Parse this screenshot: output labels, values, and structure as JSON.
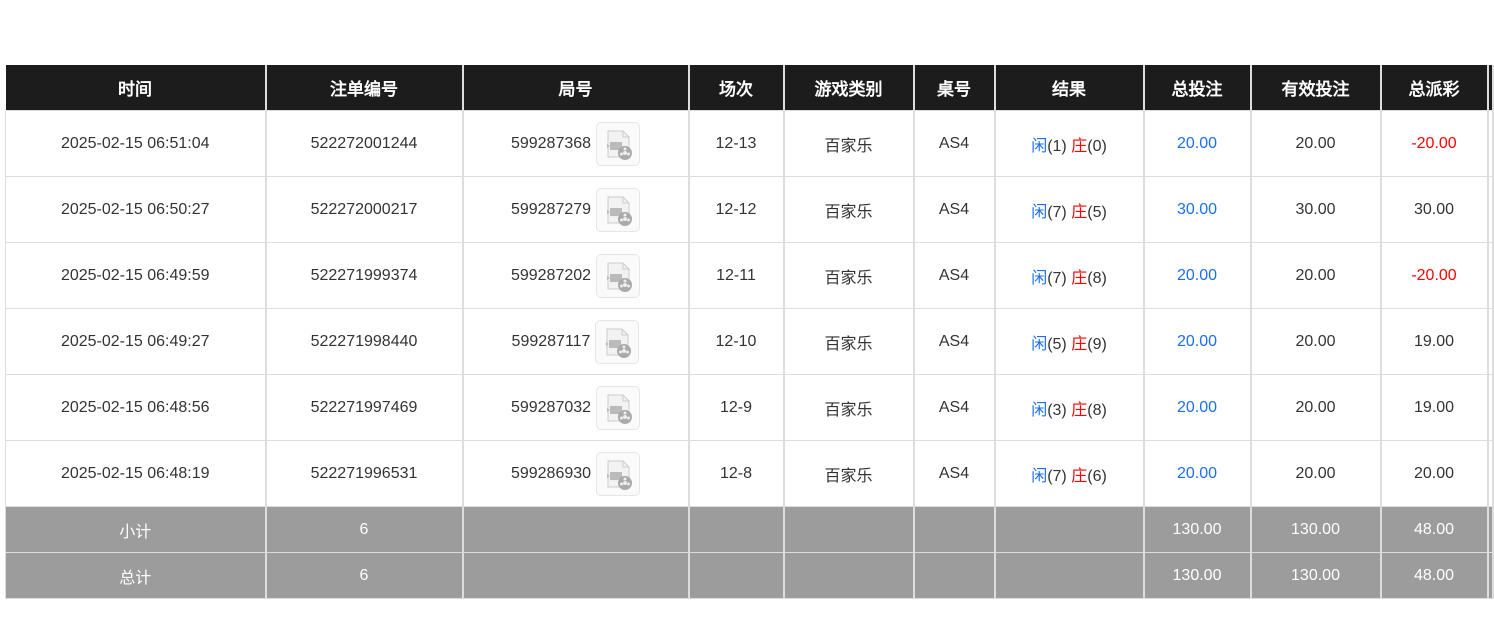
{
  "headers": [
    "时间",
    "注单编号",
    "局号",
    "场次",
    "游戏类别",
    "桌号",
    "结果",
    "总投注",
    "有效投注",
    "总派彩",
    ""
  ],
  "rows": [
    {
      "time": "2025-02-15 06:51:04",
      "bet_id": "522272001244",
      "round": "599287368",
      "session": "12-13",
      "game": "百家乐",
      "table": "AS4",
      "player": "闲",
      "player_pts": "(1)",
      "banker": "庄",
      "banker_pts": "(0)",
      "total_bet": "20.00",
      "valid_bet": "20.00",
      "payout": "-20.00",
      "payout_negative": true
    },
    {
      "time": "2025-02-15 06:50:27",
      "bet_id": "522272000217",
      "round": "599287279",
      "session": "12-12",
      "game": "百家乐",
      "table": "AS4",
      "player": "闲",
      "player_pts": "(7)",
      "banker": "庄",
      "banker_pts": "(5)",
      "total_bet": "30.00",
      "valid_bet": "30.00",
      "payout": "30.00",
      "payout_negative": false
    },
    {
      "time": "2025-02-15 06:49:59",
      "bet_id": "522271999374",
      "round": "599287202",
      "session": "12-11",
      "game": "百家乐",
      "table": "AS4",
      "player": "闲",
      "player_pts": "(7)",
      "banker": "庄",
      "banker_pts": "(8)",
      "total_bet": "20.00",
      "valid_bet": "20.00",
      "payout": "-20.00",
      "payout_negative": true
    },
    {
      "time": "2025-02-15 06:49:27",
      "bet_id": "522271998440",
      "round": "599287117",
      "session": "12-10",
      "game": "百家乐",
      "table": "AS4",
      "player": "闲",
      "player_pts": "(5)",
      "banker": "庄",
      "banker_pts": "(9)",
      "total_bet": "20.00",
      "valid_bet": "20.00",
      "payout": "19.00",
      "payout_negative": false
    },
    {
      "time": "2025-02-15 06:48:56",
      "bet_id": "522271997469",
      "round": "599287032",
      "session": "12-9",
      "game": "百家乐",
      "table": "AS4",
      "player": "闲",
      "player_pts": "(3)",
      "banker": "庄",
      "banker_pts": "(8)",
      "total_bet": "20.00",
      "valid_bet": "20.00",
      "payout": "19.00",
      "payout_negative": false
    },
    {
      "time": "2025-02-15 06:48:19",
      "bet_id": "522271996531",
      "round": "599286930",
      "session": "12-8",
      "game": "百家乐",
      "table": "AS4",
      "player": "闲",
      "player_pts": "(7)",
      "banker": "庄",
      "banker_pts": "(6)",
      "total_bet": "20.00",
      "valid_bet": "20.00",
      "payout": "20.00",
      "payout_negative": false
    }
  ],
  "subtotal": {
    "label": "小计",
    "count": "6",
    "total_bet": "130.00",
    "valid_bet": "130.00",
    "payout": "48.00"
  },
  "total": {
    "label": "总计",
    "count": "6",
    "total_bet": "130.00",
    "valid_bet": "130.00",
    "payout": "48.00"
  },
  "colors": {
    "header_bg": "#1c1c1c",
    "summary_bg": "#9c9c9c",
    "blue": "#1a6ef5",
    "red": "#ff0000"
  },
  "icons": {
    "round_video": "video-replay-icon"
  }
}
